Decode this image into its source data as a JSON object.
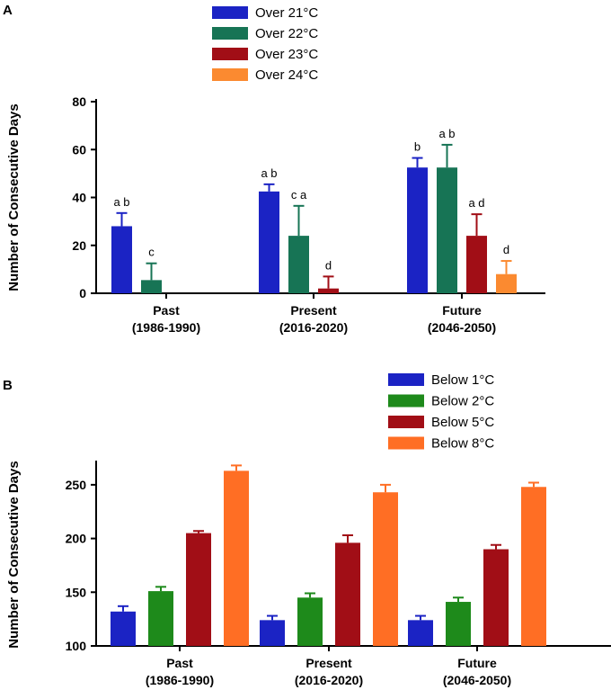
{
  "chart_data": [
    {
      "panel": "A",
      "type": "bar",
      "ylabel": "Number of Consecutive Days",
      "ylim": [
        0,
        80
      ],
      "yticks": [
        0,
        20,
        40,
        60,
        80
      ],
      "categories": [
        "Past\n(1986-1990)",
        "Present\n(2016-2020)",
        "Future\n(2046-2050)"
      ],
      "series": [
        {
          "name": "Over 21°C",
          "color": "#1b23c4",
          "values": [
            28,
            42.5,
            52.5
          ],
          "errors": [
            5.5,
            3,
            4
          ],
          "labels": [
            "a b",
            "a b",
            "b"
          ]
        },
        {
          "name": "Over 22°C",
          "color": "#177455",
          "values": [
            5.5,
            24,
            52.5
          ],
          "errors": [
            7,
            12.5,
            9.5
          ],
          "labels": [
            "c",
            "c a",
            "a b"
          ]
        },
        {
          "name": "Over 23°C",
          "color": "#a10e16",
          "values": [
            0,
            2,
            24
          ],
          "errors": [
            0,
            5,
            9
          ],
          "labels": [
            "",
            "d",
            "a d"
          ]
        },
        {
          "name": "Over 24°C",
          "color": "#fb8a30",
          "values": [
            0,
            0,
            8
          ],
          "errors": [
            0,
            0,
            5.5
          ],
          "labels": [
            "",
            "",
            "d"
          ]
        }
      ]
    },
    {
      "panel": "B",
      "type": "bar",
      "ylabel": "Number of Consecutive Days",
      "ylim": [
        100,
        270
      ],
      "yticks": [
        100,
        150,
        200,
        250
      ],
      "categories": [
        "Past\n(1986-1990)",
        "Present\n(2016-2020)",
        "Future\n(2046-2050)"
      ],
      "series": [
        {
          "name": "Below 1°C",
          "color": "#1b23c4",
          "values": [
            132,
            124,
            124
          ],
          "errors": [
            5,
            4,
            4
          ]
        },
        {
          "name": "Below 2°C",
          "color": "#1e8a1b",
          "values": [
            151,
            145,
            141
          ],
          "errors": [
            4,
            4,
            4
          ]
        },
        {
          "name": "Below 5°C",
          "color": "#a10e16",
          "values": [
            205,
            196,
            190
          ],
          "errors": [
            2,
            7,
            4
          ]
        },
        {
          "name": "Below 8°C",
          "color": "#ff6e24",
          "values": [
            263,
            243,
            248
          ],
          "errors": [
            5,
            7,
            4
          ]
        }
      ]
    }
  ]
}
